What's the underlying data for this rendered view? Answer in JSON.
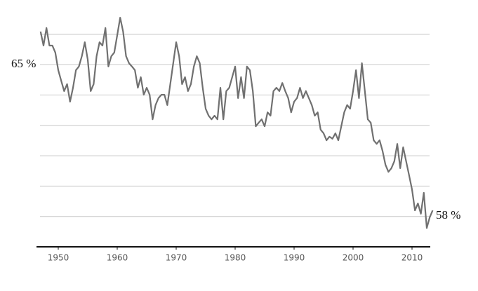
{
  "chart_data": {
    "type": "line",
    "annotations": [
      {
        "text": "65 %"
      },
      {
        "text": "58 %"
      }
    ],
    "x": [
      1947,
      1947.5,
      1948,
      1948.5,
      1949,
      1949.5,
      1950,
      1950.5,
      1951,
      1951.5,
      1952,
      1952.5,
      1953,
      1953.5,
      1954,
      1954.5,
      1955,
      1955.5,
      1956,
      1956.5,
      1957,
      1957.5,
      1958,
      1958.5,
      1959,
      1959.5,
      1960,
      1960.5,
      1961,
      1961.5,
      1962,
      1962.5,
      1963,
      1963.5,
      1964,
      1964.5,
      1965,
      1965.5,
      1966,
      1966.5,
      1967,
      1967.5,
      1968,
      1968.5,
      1969,
      1969.5,
      1970,
      1970.5,
      1971,
      1971.5,
      1972,
      1972.5,
      1973,
      1973.5,
      1974,
      1974.5,
      1975,
      1975.5,
      1976,
      1976.5,
      1977,
      1977.5,
      1978,
      1978.5,
      1979,
      1979.5,
      1980,
      1980.5,
      1981,
      1981.5,
      1982,
      1982.5,
      1983,
      1983.5,
      1984,
      1984.5,
      1985,
      1985.5,
      1986,
      1986.5,
      1987,
      1987.5,
      1988,
      1988.5,
      1989,
      1989.5,
      1990,
      1990.5,
      1991,
      1991.5,
      1992,
      1992.5,
      1993,
      1993.5,
      1994,
      1994.5,
      1995,
      1995.5,
      1996,
      1996.5,
      1997,
      1997.5,
      1998,
      1998.5,
      1999,
      1999.5,
      2000,
      2000.5,
      2001,
      2001.5,
      2002,
      2002.5,
      2003,
      2003.5,
      2004,
      2004.5,
      2005,
      2005.5,
      2006,
      2006.5,
      2007,
      2007.5,
      2008,
      2008.5,
      2009,
      2009.5,
      2010,
      2010.5,
      2011,
      2011.5,
      2012,
      2012.5,
      2013,
      2013.5
    ],
    "series": [
      {
        "color": "#707070",
        "values": [
          64.09,
          63.63,
          64.21,
          63.63,
          63.63,
          63.4,
          62.82,
          62.47,
          62.13,
          62.36,
          61.78,
          62.24,
          62.82,
          62.94,
          63.28,
          63.74,
          63.17,
          62.13,
          62.36,
          63.28,
          63.74,
          63.63,
          64.21,
          62.94,
          63.28,
          63.4,
          63.97,
          64.55,
          64.09,
          63.28,
          63.05,
          62.94,
          62.82,
          62.24,
          62.59,
          62.01,
          62.24,
          62.01,
          61.2,
          61.67,
          61.9,
          62.01,
          62.01,
          61.67,
          62.36,
          63.05,
          63.74,
          63.28,
          62.36,
          62.59,
          62.13,
          62.36,
          62.94,
          63.28,
          63.05,
          62.24,
          61.55,
          61.32,
          61.2,
          61.32,
          61.2,
          62.24,
          61.2,
          62.13,
          62.24,
          62.59,
          62.94,
          61.9,
          62.59,
          61.9,
          62.94,
          62.82,
          62.13,
          60.97,
          61.09,
          61.2,
          60.97,
          61.43,
          61.32,
          62.13,
          62.24,
          62.13,
          62.4,
          62.13,
          61.9,
          61.43,
          61.78,
          61.9,
          62.24,
          61.9,
          62.13,
          61.9,
          61.67,
          61.32,
          61.43,
          60.86,
          60.74,
          60.51,
          60.63,
          60.56,
          60.74,
          60.51,
          60.97,
          61.43,
          61.67,
          61.55,
          62.13,
          62.82,
          61.9,
          63.05,
          62.13,
          61.2,
          61.09,
          60.51,
          60.39,
          60.51,
          60.16,
          59.7,
          59.47,
          59.59,
          59.82,
          60.39,
          59.59,
          60.28,
          59.82,
          59.36,
          58.89,
          58.2,
          58.43,
          58.09,
          58.78,
          57.62,
          57.97,
          58.2
        ]
      }
    ],
    "xlim": [
      1946.5,
      2014
    ],
    "xticks": [
      1950,
      1960,
      1970,
      1980,
      1990,
      2000,
      2010
    ],
    "ylim": [
      57,
      64.9
    ],
    "yticks": [
      58,
      59,
      60,
      61,
      62,
      63,
      64
    ],
    "grid": true
  }
}
